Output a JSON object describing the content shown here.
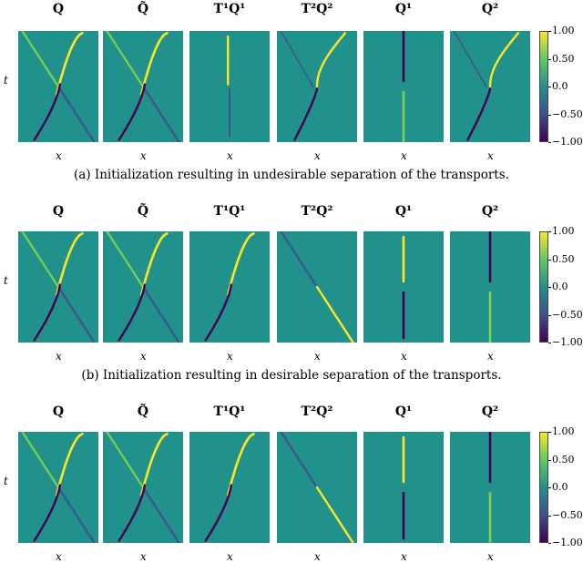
{
  "rows": [
    {
      "titles": [
        "Q",
        "Q̃",
        "T¹Q¹",
        "T²Q²",
        "Q¹",
        "Q²"
      ],
      "caption": "(a) Initialization resulting in undesirable separation of the transports."
    },
    {
      "titles": [
        "Q",
        "Q̃",
        "T¹Q¹",
        "T²Q²",
        "Q¹",
        "Q²"
      ],
      "caption": "(b) Initialization resulting in desirable separation of the transports."
    },
    {
      "titles": [
        "Q",
        "Q̃",
        "T¹Q¹",
        "T²Q²",
        "Q¹",
        "Q²"
      ],
      "caption": ""
    }
  ],
  "axis_labels": {
    "x": "x",
    "t": "t"
  },
  "colorbar": {
    "ticks": [
      "1.00",
      "0.50",
      "0.0",
      "−0.50",
      "−1.00"
    ],
    "range": [
      -1.0,
      1.0
    ],
    "colormap": "viridis"
  },
  "colors": {
    "background": "#21918c",
    "positive": "#fde725",
    "positive_mid": "#7ad151",
    "negative": "#440154",
    "negative_mid": "#3b528b"
  }
}
